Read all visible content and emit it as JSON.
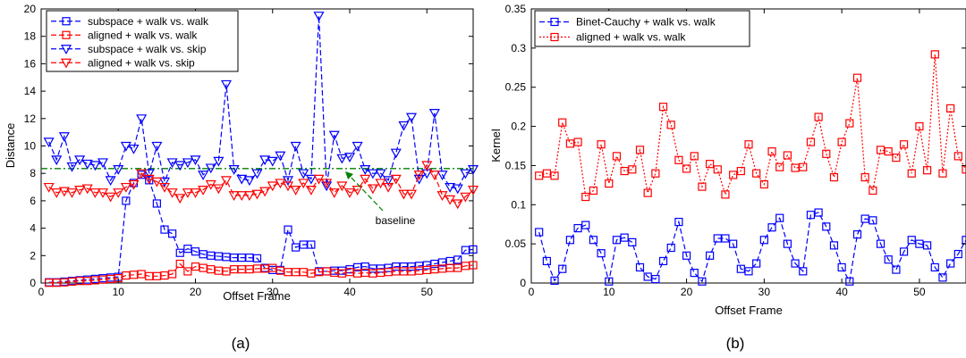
{
  "chart_data": [
    {
      "type": "line",
      "caption": "(a)",
      "xlabel": "Offset Frame",
      "ylabel": "Distance",
      "xlim": [
        0,
        56
      ],
      "ylim": [
        0,
        20
      ],
      "xticks": [
        0,
        10,
        20,
        30,
        40,
        50
      ],
      "yticks": [
        0,
        2,
        4,
        6,
        8,
        10,
        12,
        14,
        16,
        18,
        20
      ],
      "legend_position": "top-left",
      "grid": false,
      "x": [
        1,
        2,
        3,
        4,
        5,
        6,
        7,
        8,
        9,
        10,
        11,
        12,
        13,
        14,
        15,
        16,
        17,
        18,
        19,
        20,
        21,
        22,
        23,
        24,
        25,
        26,
        27,
        28,
        29,
        30,
        31,
        32,
        33,
        34,
        35,
        36,
        37,
        38,
        39,
        40,
        41,
        42,
        43,
        44,
        45,
        46,
        47,
        48,
        49,
        50,
        51,
        52,
        53,
        54,
        55,
        56
      ],
      "series": [
        {
          "name": "subspace + walk vs. walk",
          "color": "#0000ff",
          "dash": "6,3",
          "marker": "square",
          "values": [
            0.05,
            0.05,
            0.1,
            0.15,
            0.2,
            0.25,
            0.3,
            0.35,
            0.4,
            0.45,
            6.0,
            7.3,
            7.9,
            7.5,
            5.8,
            3.9,
            3.6,
            2.2,
            2.5,
            2.3,
            2.1,
            2.0,
            1.95,
            1.9,
            1.85,
            1.85,
            1.85,
            1.8,
            1.1,
            0.95,
            0.95,
            3.9,
            2.6,
            2.8,
            2.8,
            0.85,
            0.85,
            0.9,
            0.9,
            1.0,
            1.15,
            1.2,
            1.05,
            1.05,
            1.1,
            1.2,
            1.2,
            1.2,
            1.25,
            1.3,
            1.4,
            1.5,
            1.6,
            1.7,
            2.4,
            2.45
          ]
        },
        {
          "name": "aligned + walk vs. walk",
          "color": "#ff0000",
          "dash": "6,3",
          "marker": "square",
          "values": [
            0.02,
            0.02,
            0.05,
            0.1,
            0.15,
            0.15,
            0.2,
            0.25,
            0.3,
            0.35,
            0.55,
            0.6,
            0.65,
            0.5,
            0.5,
            0.55,
            0.65,
            1.4,
            0.85,
            1.2,
            1.1,
            1.0,
            0.9,
            0.85,
            1.0,
            1.0,
            1.0,
            1.05,
            1.05,
            1.1,
            0.9,
            0.8,
            0.8,
            0.8,
            0.7,
            0.8,
            0.85,
            0.75,
            0.7,
            0.8,
            0.7,
            0.75,
            0.7,
            0.75,
            0.8,
            0.85,
            0.85,
            0.85,
            0.9,
            0.95,
            1.0,
            1.05,
            1.1,
            1.1,
            1.25,
            1.3
          ]
        },
        {
          "name": "subspace + walk vs. skip",
          "color": "#0000ff",
          "dash": "6,3",
          "marker": "triangle-down",
          "values": [
            10.3,
            9.0,
            10.7,
            8.5,
            9.0,
            8.7,
            8.6,
            8.8,
            7.5,
            8.3,
            10.0,
            9.8,
            12.0,
            8.0,
            10.0,
            7.4,
            8.8,
            8.6,
            8.8,
            9.0,
            7.9,
            8.4,
            8.9,
            14.5,
            8.3,
            7.6,
            7.5,
            8.0,
            9.0,
            8.9,
            9.3,
            7.5,
            10.0,
            8.0,
            7.6,
            19.5,
            7.1,
            10.8,
            9.1,
            9.2,
            10.0,
            8.3,
            8.0,
            8.0,
            7.5,
            9.5,
            11.5,
            12.1,
            7.6,
            8.0,
            12.4,
            7.9,
            7.0,
            6.9,
            8.0,
            8.3
          ]
        },
        {
          "name": "aligned + walk vs. skip",
          "color": "#ff0000",
          "dash": "6,3",
          "marker": "triangle-down",
          "values": [
            7.0,
            6.6,
            6.7,
            6.6,
            6.8,
            6.9,
            6.6,
            6.6,
            6.3,
            6.6,
            7.0,
            7.2,
            8.0,
            7.6,
            7.4,
            7.0,
            6.6,
            6.2,
            6.6,
            6.6,
            6.8,
            7.2,
            6.9,
            7.5,
            6.4,
            6.4,
            6.4,
            6.5,
            6.7,
            7.1,
            7.3,
            7.1,
            6.8,
            7.3,
            6.8,
            7.6,
            7.3,
            6.6,
            7.1,
            6.6,
            6.8,
            7.6,
            6.9,
            7.3,
            7.0,
            7.6,
            6.5,
            6.5,
            7.9,
            8.6,
            7.9,
            6.4,
            6.1,
            5.8,
            6.3,
            6.8
          ]
        }
      ],
      "baseline": {
        "value": 8.35,
        "color": "#008000",
        "label": "baseline"
      }
    },
    {
      "type": "line",
      "caption": "(b)",
      "xlabel": "Offset Frame",
      "ylabel": "Kernel",
      "xlim": [
        0,
        56
      ],
      "ylim": [
        0,
        0.35
      ],
      "xticks": [
        0,
        10,
        20,
        30,
        40,
        50
      ],
      "yticks": [
        0,
        0.05,
        0.1,
        0.15,
        0.2,
        0.25,
        0.3,
        0.35
      ],
      "ytick_labels": [
        "0",
        "0.05",
        "0.1",
        "0.15",
        "0.2",
        "0.25",
        "0.3",
        "0.35"
      ],
      "legend_position": "top-left",
      "grid": false,
      "x": [
        1,
        2,
        3,
        4,
        5,
        6,
        7,
        8,
        9,
        10,
        11,
        12,
        13,
        14,
        15,
        16,
        17,
        18,
        19,
        20,
        21,
        22,
        23,
        24,
        25,
        26,
        27,
        28,
        29,
        30,
        31,
        32,
        33,
        34,
        35,
        36,
        37,
        38,
        39,
        40,
        41,
        42,
        43,
        44,
        45,
        46,
        47,
        48,
        49,
        50,
        51,
        52,
        53,
        54,
        55,
        56
      ],
      "series": [
        {
          "name": "Binet-Cauchy + walk vs. walk",
          "color": "#0000ff",
          "dash": "6,3",
          "marker": "square",
          "values": [
            0.065,
            0.028,
            0.003,
            0.018,
            0.055,
            0.07,
            0.074,
            0.055,
            0.038,
            0.002,
            0.055,
            0.058,
            0.052,
            0.02,
            0.008,
            0.005,
            0.028,
            0.045,
            0.078,
            0.035,
            0.013,
            0.002,
            0.035,
            0.057,
            0.057,
            0.05,
            0.018,
            0.015,
            0.025,
            0.055,
            0.071,
            0.083,
            0.05,
            0.025,
            0.015,
            0.087,
            0.09,
            0.072,
            0.048,
            0.02,
            0.002,
            0.062,
            0.082,
            0.08,
            0.05,
            0.03,
            0.017,
            0.04,
            0.055,
            0.05,
            0.048,
            0.02,
            0.007,
            0.025,
            0.037,
            0.055
          ]
        },
        {
          "name": "aligned + walk vs. walk",
          "color": "#ff0000",
          "dash": "2,2",
          "marker": "square",
          "values": [
            0.137,
            0.14,
            0.137,
            0.205,
            0.178,
            0.18,
            0.11,
            0.118,
            0.177,
            0.127,
            0.162,
            0.143,
            0.145,
            0.17,
            0.115,
            0.14,
            0.225,
            0.202,
            0.157,
            0.146,
            0.162,
            0.123,
            0.152,
            0.145,
            0.113,
            0.138,
            0.143,
            0.177,
            0.14,
            0.126,
            0.168,
            0.148,
            0.163,
            0.147,
            0.148,
            0.18,
            0.212,
            0.165,
            0.135,
            0.18,
            0.204,
            0.262,
            0.135,
            0.118,
            0.17,
            0.168,
            0.16,
            0.177,
            0.14,
            0.2,
            0.144,
            0.292,
            0.14,
            0.223,
            0.162,
            0.145
          ]
        }
      ]
    }
  ]
}
